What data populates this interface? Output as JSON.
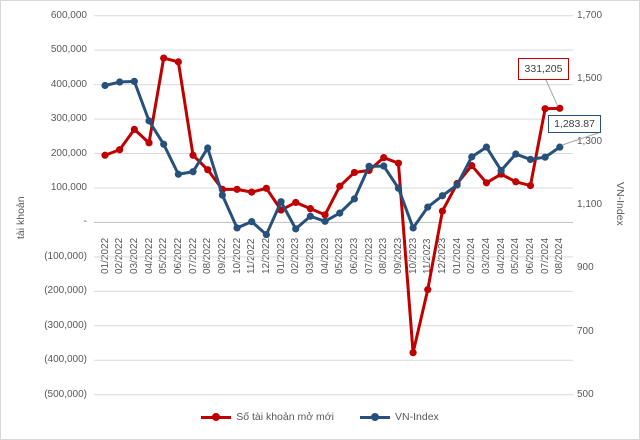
{
  "chart_data": {
    "type": "line",
    "title": "",
    "legend_position": "bottom",
    "grid": true,
    "categories": [
      "01/2022",
      "02/2022",
      "03/2022",
      "04/2022",
      "05/2022",
      "06/2022",
      "07/2022",
      "08/2022",
      "09/2022",
      "10/2022",
      "11/2022",
      "12/2022",
      "01/2023",
      "02/2023",
      "03/2023",
      "04/2023",
      "05/2023",
      "06/2023",
      "07/2023",
      "08/2023",
      "09/2023",
      "10/2023",
      "11/2023",
      "12/2023",
      "01/2024",
      "02/2024",
      "03/2024",
      "04/2024",
      "05/2024",
      "06/2024",
      "07/2024",
      "08/2024"
    ],
    "series": [
      {
        "name": "Số tài khoản mở mới",
        "axis": "left",
        "color": "#C00000",
        "values": [
          195000,
          211000,
          270000,
          231000,
          477000,
          466000,
          195000,
          153000,
          96000,
          96000,
          88000,
          99000,
          36000,
          58000,
          40000,
          22000,
          105000,
          145000,
          151000,
          188000,
          172000,
          -378000,
          -195000,
          33000,
          113000,
          165000,
          115000,
          140000,
          118000,
          107000,
          330000,
          331205
        ]
      },
      {
        "name": "VN-Index",
        "axis": "right",
        "color": "#27507A",
        "values": [
          1479,
          1490,
          1492,
          1367,
          1293,
          1198,
          1206,
          1281,
          1132,
          1028,
          1048,
          1007,
          1111,
          1025,
          1065,
          1049,
          1075,
          1120,
          1223,
          1224,
          1154,
          1028,
          1094,
          1130,
          1164,
          1253,
          1284,
          1210,
          1262,
          1245,
          1252,
          1283.87
        ]
      }
    ],
    "left_axis": {
      "title": "tài khoản",
      "min": -500000,
      "max": 600000,
      "tick_step": 100000,
      "tick_labels": [
        "600,000",
        "500,000",
        "400,000",
        "300,000",
        "200,000",
        "100,000",
        "-",
        "(100,000)",
        "(200,000)",
        "(300,000)",
        "(400,000)",
        "(500,000)"
      ]
    },
    "right_axis": {
      "title": "VN-Index",
      "min": 500,
      "max": 1700,
      "tick_step": 200,
      "tick_labels": [
        "1,700",
        "1,500",
        "1,300",
        "1,100",
        "900",
        "700",
        "500"
      ]
    },
    "annotations": [
      {
        "text": "331,205",
        "series_index": 0,
        "category": "08/2024"
      },
      {
        "text": "1,283.87",
        "series_index": 1,
        "category": "08/2024"
      }
    ],
    "colors": {
      "gridline": "#d9d9d9",
      "zero_axis": "#bfbfbf",
      "leader_line": "#a6a6a6",
      "axis_text": "#595959"
    }
  }
}
